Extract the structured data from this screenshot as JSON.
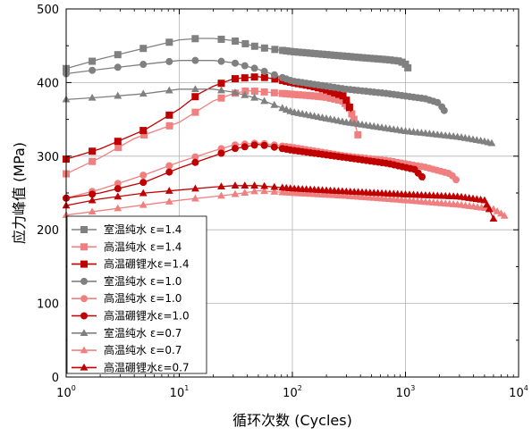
{
  "chart_data": {
    "type": "scatter",
    "xlabel": "循环次数 (Cycles)",
    "ylabel": "应力峰值 (MPa)",
    "xscale": "log",
    "xlim": [
      1,
      10000
    ],
    "ylim": [
      0,
      500
    ],
    "grid": true,
    "x_tick_labels": [
      {
        "base": "10",
        "exp": "0",
        "value": 1
      },
      {
        "base": "10",
        "exp": "1",
        "value": 10
      },
      {
        "base": "10",
        "exp": "2",
        "value": 100
      },
      {
        "base": "10",
        "exp": "3",
        "value": 1000
      },
      {
        "base": "10",
        "exp": "4",
        "value": 10000
      }
    ],
    "y_ticks": [
      0,
      100,
      200,
      300,
      400,
      500
    ],
    "legend_position": "bottom-left",
    "series": [
      {
        "name": "室温纯水  ε=1.4",
        "color": "#808080",
        "marker": "square",
        "points": [
          [
            1,
            419
          ],
          [
            2,
            432
          ],
          [
            5,
            447
          ],
          [
            10,
            458
          ],
          [
            15,
            460
          ],
          [
            20,
            460
          ],
          [
            30,
            457
          ],
          [
            40,
            452
          ],
          [
            50,
            448
          ],
          [
            70,
            445
          ],
          [
            100,
            442
          ],
          [
            200,
            438
          ],
          [
            400,
            434
          ],
          [
            700,
            431
          ],
          [
            900,
            429
          ],
          [
            1000,
            425
          ],
          [
            1050,
            420
          ]
        ]
      },
      {
        "name": "高温纯水  ε=1.4",
        "color": "#f08080",
        "marker": "square",
        "points": [
          [
            1,
            276
          ],
          [
            2,
            298
          ],
          [
            4,
            324
          ],
          [
            10,
            346
          ],
          [
            20,
            375
          ],
          [
            30,
            385
          ],
          [
            40,
            389
          ],
          [
            50,
            388
          ],
          [
            100,
            384
          ],
          [
            150,
            382
          ],
          [
            200,
            380
          ],
          [
            280,
            375
          ],
          [
            320,
            365
          ],
          [
            350,
            350
          ],
          [
            380,
            329
          ]
        ]
      },
      {
        "name": "高温硼锂水ε=1.4",
        "color": "#c00000",
        "marker": "square",
        "points": [
          [
            1,
            296
          ],
          [
            2,
            310
          ],
          [
            5,
            336
          ],
          [
            10,
            364
          ],
          [
            15,
            385
          ],
          [
            20,
            395
          ],
          [
            30,
            405
          ],
          [
            50,
            408
          ],
          [
            70,
            405
          ],
          [
            100,
            400
          ],
          [
            150,
            395
          ],
          [
            200,
            390
          ],
          [
            280,
            382
          ],
          [
            310,
            373
          ],
          [
            330,
            360
          ]
        ]
      },
      {
        "name": "室温纯水  ε=1.0",
        "color": "#808080",
        "marker": "circle",
        "points": [
          [
            1,
            412
          ],
          [
            2,
            418
          ],
          [
            5,
            425
          ],
          [
            10,
            430
          ],
          [
            20,
            430
          ],
          [
            30,
            427
          ],
          [
            50,
            418
          ],
          [
            100,
            402
          ],
          [
            300,
            391
          ],
          [
            700,
            385
          ],
          [
            1500,
            378
          ],
          [
            2000,
            372
          ],
          [
            2200,
            362
          ]
        ]
      },
      {
        "name": "高温纯水  ε=1.0",
        "color": "#f08080",
        "marker": "circle",
        "points": [
          [
            1,
            243
          ],
          [
            2,
            255
          ],
          [
            5,
            275
          ],
          [
            10,
            292
          ],
          [
            20,
            307
          ],
          [
            30,
            315
          ],
          [
            50,
            318
          ],
          [
            100,
            312
          ],
          [
            300,
            300
          ],
          [
            700,
            294
          ],
          [
            1500,
            285
          ],
          [
            2500,
            276
          ],
          [
            2800,
            268
          ]
        ]
      },
      {
        "name": "高温硼锂水ε=1.0",
        "color": "#c00000",
        "marker": "circle",
        "points": [
          [
            1,
            243
          ],
          [
            2,
            250
          ],
          [
            5,
            265
          ],
          [
            10,
            284
          ],
          [
            20,
            300
          ],
          [
            30,
            310
          ],
          [
            50,
            316
          ],
          [
            100,
            308
          ],
          [
            300,
            298
          ],
          [
            700,
            290
          ],
          [
            1200,
            282
          ],
          [
            1400,
            272
          ],
          [
            1450,
            267
          ]
        ]
      },
      {
        "name": "室温纯水  ε=0.7",
        "color": "#808080",
        "marker": "triangle",
        "points": [
          [
            1,
            377
          ],
          [
            2,
            380
          ],
          [
            5,
            385
          ],
          [
            10,
            391
          ],
          [
            20,
            391
          ],
          [
            30,
            387
          ],
          [
            50,
            378
          ],
          [
            100,
            360
          ],
          [
            300,
            346
          ],
          [
            1000,
            334
          ],
          [
            3000,
            326
          ],
          [
            5000,
            320
          ],
          [
            6000,
            317
          ]
        ]
      },
      {
        "name": "高温纯水  ε=0.7",
        "color": "#f08080",
        "marker": "triangle",
        "points": [
          [
            1,
            220
          ],
          [
            2,
            226
          ],
          [
            5,
            234
          ],
          [
            10,
            240
          ],
          [
            30,
            248
          ],
          [
            50,
            253
          ],
          [
            100,
            250
          ],
          [
            300,
            246
          ],
          [
            1000,
            240
          ],
          [
            3000,
            234
          ],
          [
            6000,
            228
          ],
          [
            7000,
            222
          ],
          [
            7500,
            219
          ]
        ]
      },
      {
        "name": "高温硼锂水ε=0.7",
        "color": "#c00000",
        "marker": "triangle",
        "points": [
          [
            1,
            233
          ],
          [
            2,
            242
          ],
          [
            5,
            250
          ],
          [
            10,
            254
          ],
          [
            20,
            258
          ],
          [
            30,
            260
          ],
          [
            50,
            260
          ],
          [
            100,
            256
          ],
          [
            300,
            252
          ],
          [
            1000,
            248
          ],
          [
            3000,
            245
          ],
          [
            5000,
            240
          ],
          [
            5500,
            228
          ],
          [
            6000,
            215
          ]
        ]
      }
    ]
  }
}
